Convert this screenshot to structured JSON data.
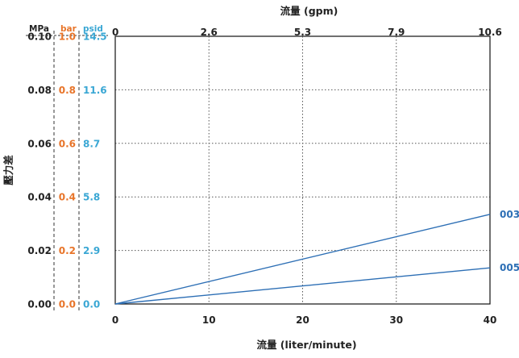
{
  "chart_data": {
    "type": "line",
    "x_axis_bottom": {
      "label": "流量 (liter/minute)",
      "ticks": [
        0,
        10,
        20,
        30,
        40
      ],
      "range": [
        0,
        40
      ]
    },
    "x_axis_top": {
      "label": "流量 (gpm)",
      "ticks": [
        "0",
        "2.6",
        "5.3",
        "7.9",
        "10.6"
      ]
    },
    "y_axis": {
      "label": "壓力差",
      "range": [
        0,
        0.1
      ],
      "ticks": [
        0,
        0.02,
        0.04,
        0.06,
        0.08,
        0.1
      ]
    },
    "y_scales": [
      {
        "unit": "MPa",
        "color": "#222222",
        "tick_labels": [
          "0.00",
          "0.02",
          "0.04",
          "0.06",
          "0.08",
          "0.10"
        ]
      },
      {
        "unit": "bar",
        "color": "#e8752a",
        "tick_labels": [
          "0.0",
          "0.2",
          "0.4",
          "0.6",
          "0.8",
          "1.0"
        ]
      },
      {
        "unit": "psid",
        "color": "#3aa7d4",
        "tick_labels": [
          "0.0",
          "2.9",
          "5.8",
          "8.7",
          "11.6",
          "14.5"
        ]
      }
    ],
    "series": [
      {
        "name": "003",
        "color": "#2d6fb5",
        "x": [
          0,
          40
        ],
        "y": [
          0,
          0.0335
        ]
      },
      {
        "name": "005",
        "color": "#2d6fb5",
        "x": [
          0,
          40
        ],
        "y": [
          0,
          0.0135
        ]
      }
    ],
    "grid": "dotted"
  }
}
